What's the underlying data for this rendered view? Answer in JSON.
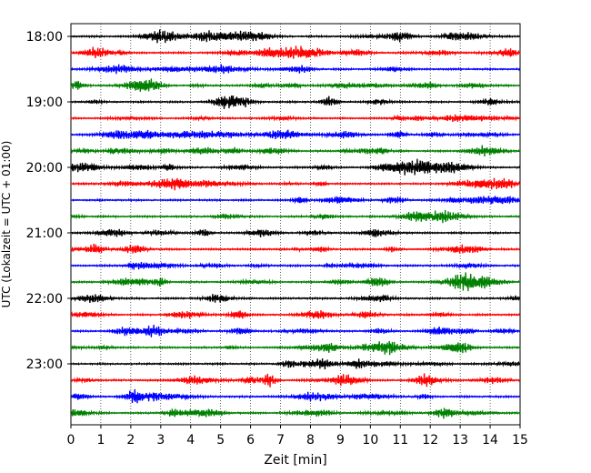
{
  "chart_data": {
    "type": "line",
    "xlabel": "Zeit  [min]",
    "ylabel": "UTC (Lokalzeit = UTC + 01:00)",
    "xlim": [
      0,
      15
    ],
    "x_ticks": [
      0,
      1,
      2,
      3,
      4,
      5,
      6,
      7,
      8,
      9,
      10,
      11,
      12,
      13,
      14,
      15
    ],
    "x_tick_labels": [
      "0",
      "1",
      "2",
      "3",
      "4",
      "5",
      "6",
      "7",
      "8",
      "9",
      "10",
      "11",
      "12",
      "13",
      "14",
      "15"
    ],
    "y_tick_labels": [
      "18:00",
      "19:00",
      "20:00",
      "21:00",
      "22:00",
      "23:00"
    ],
    "grid": "vertical-dotted",
    "trace_start": "18:00",
    "trace_interval_minutes": 15,
    "trace_count": 24,
    "trace_colors": [
      "#000000",
      "#ff0000",
      "#0000ff",
      "#008000"
    ]
  }
}
